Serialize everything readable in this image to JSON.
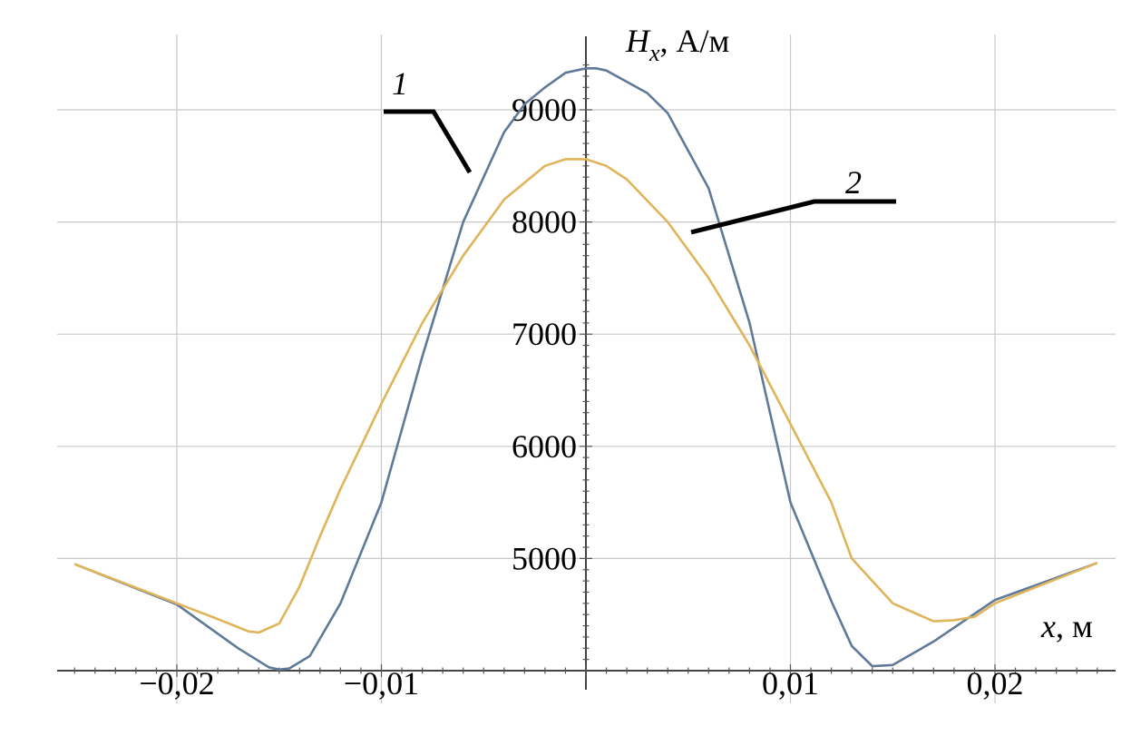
{
  "chart_data": {
    "type": "line",
    "x_axis": {
      "label_var": "x",
      "label_unit": ", м",
      "range": [
        -0.026,
        0.026
      ],
      "ticks": [
        -0.02,
        -0.01,
        0.01,
        0.02
      ],
      "tick_labels": [
        "−0,02",
        "−0,01",
        "0,01",
        "0,02"
      ]
    },
    "y_axis": {
      "label_var": "H",
      "label_sub": "x",
      "label_unit": ", А/м",
      "range": [
        4000,
        9600
      ],
      "ticks": [
        5000,
        6000,
        7000,
        8000,
        9000
      ],
      "tick_labels": [
        "5000",
        "6000",
        "7000",
        "8000",
        "9000"
      ]
    },
    "grid": true,
    "series": [
      {
        "name": "1",
        "color": "#5f7a98",
        "x": [
          -0.025,
          -0.02,
          -0.017,
          -0.0155,
          -0.015,
          -0.0145,
          -0.0135,
          -0.012,
          -0.01,
          -0.008,
          -0.006,
          -0.004,
          -0.003,
          -0.002,
          -0.001,
          0,
          0.0005,
          0.001,
          0.002,
          0.003,
          0.004,
          0.006,
          0.008,
          0.01,
          0.012,
          0.013,
          0.014,
          0.015,
          0.017,
          0.02,
          0.025
        ],
        "y": [
          4950,
          4590,
          4200,
          4030,
          4010,
          4020,
          4130,
          4600,
          5500,
          6800,
          8000,
          8800,
          9050,
          9200,
          9330,
          9370,
          9370,
          9350,
          9250,
          9150,
          8970,
          8300,
          7100,
          5500,
          4620,
          4220,
          4040,
          4050,
          4260,
          4630,
          4960
        ]
      },
      {
        "name": "2",
        "color": "#e0b45a",
        "x": [
          -0.025,
          -0.02,
          -0.018,
          -0.0165,
          -0.016,
          -0.015,
          -0.014,
          -0.013,
          -0.012,
          -0.01,
          -0.008,
          -0.006,
          -0.004,
          -0.002,
          -0.001,
          0,
          0.001,
          0.002,
          0.004,
          0.006,
          0.008,
          0.01,
          0.012,
          0.013,
          0.015,
          0.017,
          0.018,
          0.019,
          0.02,
          0.025
        ],
        "y": [
          4950,
          4600,
          4460,
          4350,
          4340,
          4420,
          4750,
          5200,
          5620,
          6380,
          7100,
          7700,
          8200,
          8500,
          8560,
          8560,
          8500,
          8380,
          8000,
          7500,
          6900,
          6200,
          5500,
          5000,
          4600,
          4440,
          4450,
          4480,
          4600,
          4960
        ]
      }
    ],
    "annotations": [
      {
        "text": "1",
        "series": 0
      },
      {
        "text": "2",
        "series": 1
      }
    ]
  }
}
